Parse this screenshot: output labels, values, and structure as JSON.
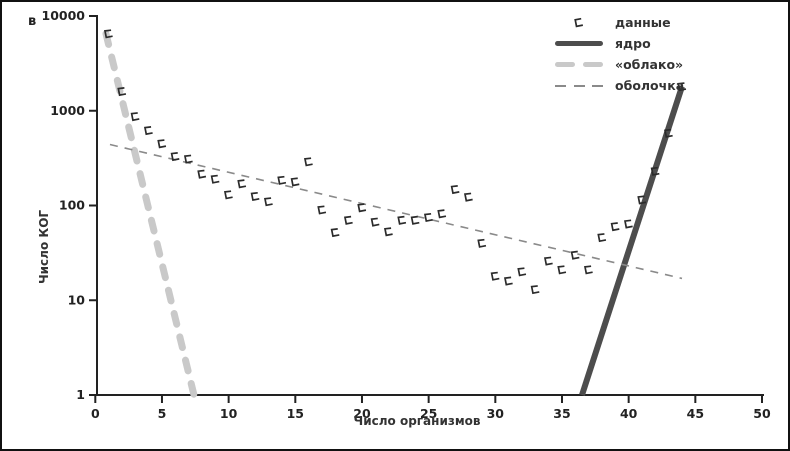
{
  "figure": {
    "panel_label": "в"
  },
  "legend": {
    "items": [
      {
        "label": "данные",
        "swatch": "hook-marker-icon",
        "color": "#2b2b2b"
      },
      {
        "label": "ядро",
        "swatch": "thick-solid-line",
        "color": "#4d4d4d"
      },
      {
        "label": "«облако»",
        "swatch": "thick-dashed-line",
        "color": "#c9c9c9"
      },
      {
        "label": "оболочка",
        "swatch": "thin-dashed-line",
        "color": "#8a8a8a"
      }
    ]
  },
  "chart_data": {
    "type": "scatter",
    "title": "",
    "xlabel": "Число организмов",
    "ylabel": "Число КОГ",
    "x_axis": {
      "scale": "linear",
      "min": 0,
      "max": 50,
      "ticks": [
        0,
        5,
        10,
        15,
        20,
        25,
        30,
        35,
        40,
        45,
        50
      ]
    },
    "y_axis": {
      "scale": "log",
      "min": 1,
      "max": 10000,
      "ticks": [
        1,
        10,
        100,
        1000,
        10000
      ]
    },
    "grid": false,
    "legend_position": "top-right",
    "series": [
      {
        "name": "данные",
        "type": "scatter",
        "marker": "hook",
        "color": "#2b2b2b",
        "x": [
          1,
          2,
          3,
          4,
          5,
          6,
          7,
          8,
          9,
          10,
          11,
          12,
          13,
          14,
          15,
          16,
          17,
          18,
          19,
          20,
          21,
          22,
          23,
          24,
          25,
          26,
          27,
          28,
          29,
          30,
          31,
          32,
          33,
          34,
          35,
          36,
          37,
          38,
          39,
          40,
          41,
          42,
          43,
          44
        ],
        "y": [
          6500,
          1600,
          870,
          620,
          450,
          330,
          310,
          215,
          190,
          130,
          170,
          125,
          110,
          185,
          178,
          290,
          90,
          52,
          70,
          95,
          67,
          53,
          70,
          70,
          75,
          82,
          148,
          123,
          40,
          18,
          16,
          20,
          13,
          26,
          21,
          30,
          21,
          46,
          60,
          64,
          115,
          230,
          580,
          1800
        ]
      },
      {
        "name": "ядро",
        "type": "line",
        "style": "thick-solid",
        "color": "#4d4d4d",
        "x": [
          36.5,
          44
        ],
        "y": [
          1,
          1800
        ]
      },
      {
        "name": "«облако»",
        "type": "line",
        "style": "thick-dashed",
        "color": "#c9c9c9",
        "x": [
          0.8,
          7.4
        ],
        "y": [
          6500,
          1
        ]
      },
      {
        "name": "оболочка",
        "type": "line",
        "style": "thin-dashed",
        "color": "#8a8a8a",
        "x": [
          1.1,
          44
        ],
        "y": [
          440,
          17
        ]
      }
    ]
  }
}
